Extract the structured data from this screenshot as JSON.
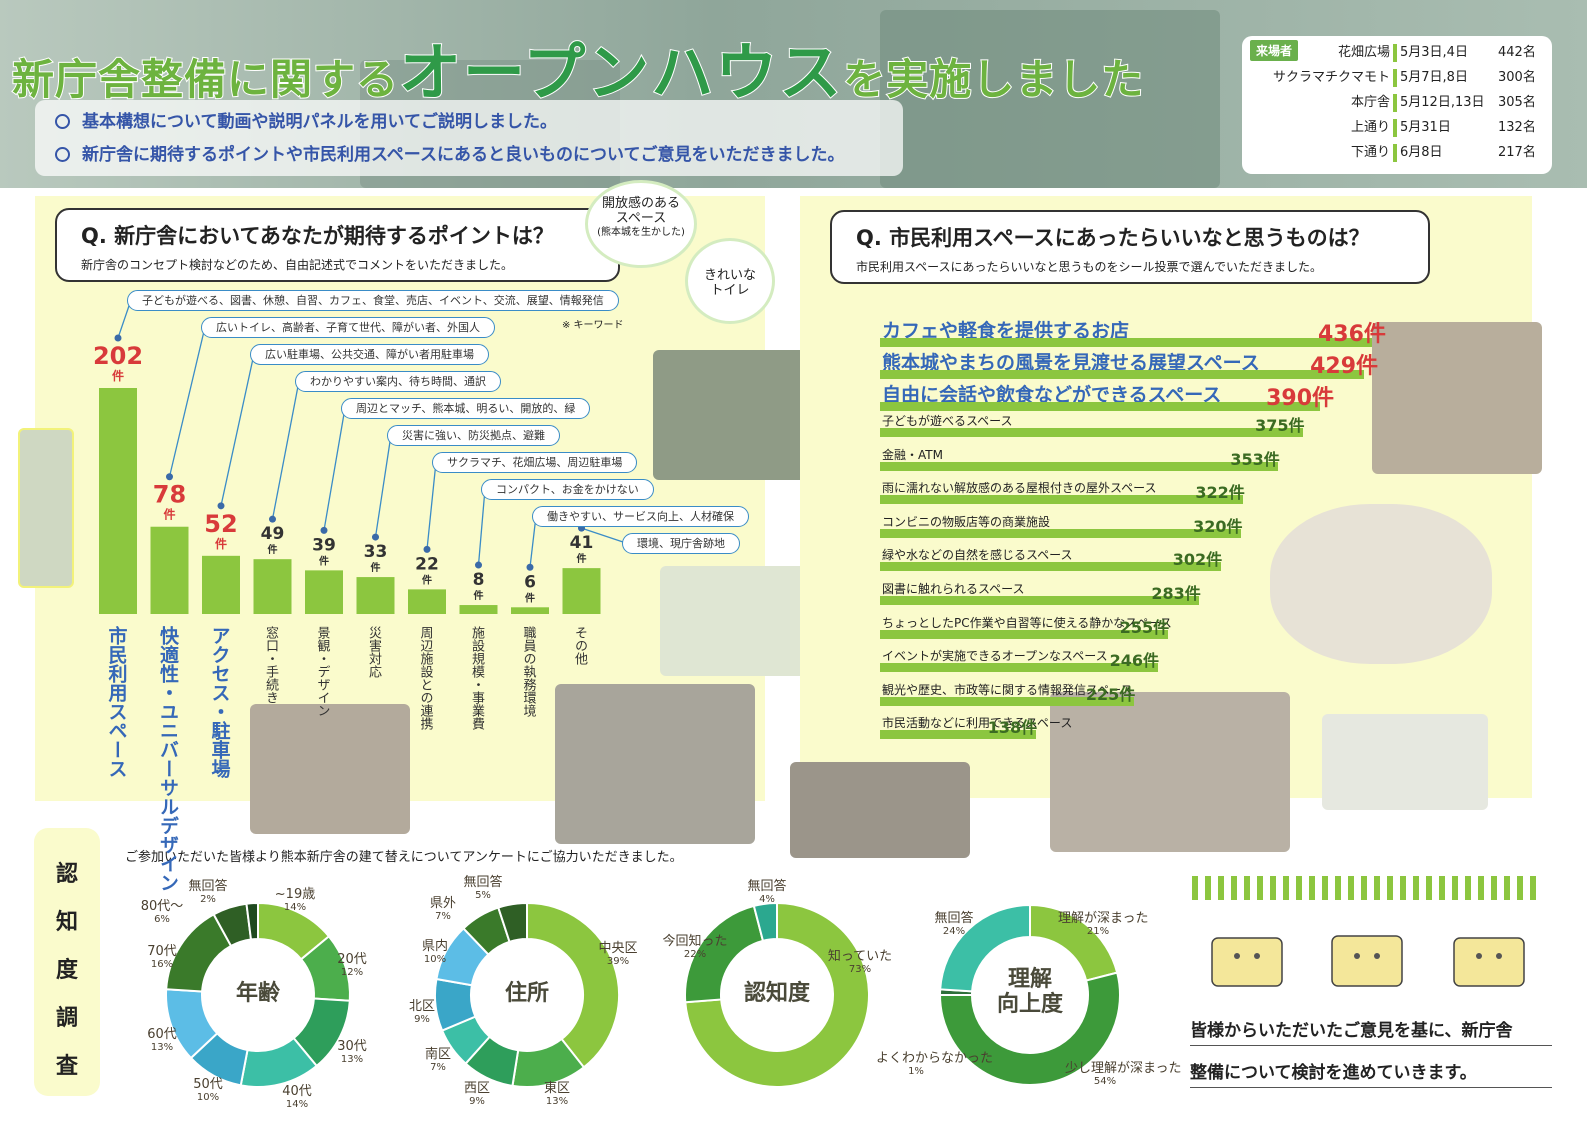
{
  "header": {
    "title_part1": "新庁舎整備に関する",
    "title_part2": "オープンハウス",
    "title_part3": "を実施しました",
    "bullets": [
      "基本構想について動画や説明パネルを用いてご説明しました。",
      "新庁舎に期待するポイントや市民利用スペースにあると良いものについてご意見をいただきました。"
    ],
    "visitors_label": "来場者",
    "visitors": [
      {
        "location": "花畑広場",
        "date": "5月3日,4日",
        "count": "442名"
      },
      {
        "location": "サクラマチクマモト",
        "date": "5月7日,8日",
        "count": "300名"
      },
      {
        "location": "本庁舎",
        "date": "5月12日,13日",
        "count": "305名"
      },
      {
        "location": "上通り",
        "date": "5月31日",
        "count": "132名"
      },
      {
        "location": "下通り",
        "date": "6月8日",
        "count": "217名"
      }
    ]
  },
  "left_panel": {
    "question": "Q.  新庁舎においてあなたが期待するポイントは？",
    "subtitle": "新庁舎のコンセプト検討などのため、自由記述式でコメントをいただきました。",
    "keyword_note": "※ キーワード",
    "bubble_open": "開放感のある\nスペース",
    "bubble_open_sub": "(熊本城を生かした)",
    "bubble_toilet": "きれいな\nトイレ"
  },
  "right_panel": {
    "question": "Q.  市民利用スペースにあったらいいなと思うものは？",
    "subtitle": "市民利用スペースにあったらいいなと思うものをシール投票で選んでいただきました。"
  },
  "awareness": {
    "side_title": [
      "認",
      "知",
      "度",
      "調",
      "査"
    ],
    "note": "ご参加いただいた皆様より熊本新庁舎の建て替えについてアンケートにご協力いただきました。"
  },
  "closing": {
    "line1": "皆様からいただいたご意見を基に、新庁舎",
    "line2": "整備について検討を進めていきます。"
  },
  "chart_data": [
    {
      "type": "bar",
      "unit": "件",
      "categories": [
        "市民利用スペース",
        "快適性・ユニバーサルデザイン",
        "アクセス・駐車場",
        "窓口・手続き",
        "景観・デザイン",
        "災害対応",
        "周辺施設との連携",
        "施設規模・事業費",
        "職員の執務環境",
        "その他"
      ],
      "values": [
        202,
        78,
        52,
        49,
        39,
        33,
        22,
        8,
        6,
        41
      ],
      "keywords": [
        "子どもが遊べる、図書、休憩、自習、カフェ、食堂、売店、イベント、交流、展望、情報発信",
        "広いトイレ、高齢者、子育て世代、障がい者、外国人",
        "広い駐車場、公共交通、障がい者用駐車場",
        "わかりやすい案内、待ち時間、通訳",
        "周辺とマッチ、熊本城、明るい、開放的、緑",
        "災害に強い、防災拠点、避難",
        "サクラマチ、花畑広場、周辺駐車場",
        "コンパクト、お金をかけない",
        "働きやすい、サービス向上、人材確保",
        "環境、現庁舎跡地"
      ]
    },
    {
      "type": "bar",
      "orientation": "horizontal",
      "unit": "件",
      "categories": [
        "カフェや軽食を提供するお店",
        "熊本城やまちの風景を見渡せる展望スペース",
        "自由に会話や飲食などができるスペース",
        "子どもが遊べるスペース",
        "金融・ATM",
        "雨に濡れない解放感のある屋根付きの屋外スペース",
        "コンビニの物販店等の商業施設",
        "緑や水などの自然を感じるスペース",
        "図書に触れられるスペース",
        "ちょっとしたPC作業や自習等に使える静かなスペース",
        "イベントが実施できるオープンなスペース",
        "観光や歴史、市政等に関する情報発信スペース",
        "市民活動などに利用できるスペース"
      ],
      "values": [
        436,
        429,
        390,
        375,
        353,
        322,
        320,
        302,
        283,
        255,
        246,
        225,
        138
      ]
    },
    {
      "type": "pie",
      "title": "年齢",
      "categories": [
        "~19歳",
        "20代",
        "30代",
        "40代",
        "50代",
        "60代",
        "70代",
        "80代～",
        "無回答"
      ],
      "values": [
        14,
        12,
        13,
        14,
        10,
        13,
        16,
        6,
        2
      ],
      "colors": [
        "#8cc63f",
        "#4cae4c",
        "#2e9e5b",
        "#3cbfa6",
        "#3aa6c8",
        "#5cbde6",
        "#3a7a2a",
        "#2f5f25",
        "#1f4a1f"
      ]
    },
    {
      "type": "pie",
      "title": "住所",
      "categories": [
        "中央区",
        "東区",
        "西区",
        "南区",
        "北区",
        "県内",
        "県外",
        "無回答"
      ],
      "values": [
        39,
        13,
        9,
        7,
        9,
        10,
        7,
        5
      ],
      "colors": [
        "#8cc63f",
        "#4cae4c",
        "#2e9e5b",
        "#3cbfa6",
        "#3aa6c8",
        "#5cbde6",
        "#3a7a2a",
        "#2f5f25"
      ]
    },
    {
      "type": "pie",
      "title": "認知度",
      "categories": [
        "知っていた",
        "今回知った",
        "無回答"
      ],
      "values": [
        73,
        22,
        4
      ],
      "colors": [
        "#8cc63f",
        "#3d9a3a",
        "#2ba88f"
      ]
    },
    {
      "type": "pie",
      "title": "理解向上度",
      "categories": [
        "理解が深まった",
        "少し理解が深まった",
        "よくわからなかった",
        "無回答"
      ],
      "values": [
        21,
        54,
        1,
        24
      ],
      "colors": [
        "#8cc63f",
        "#3d9a3a",
        "#2e6f3a",
        "#3cbfa6"
      ]
    }
  ]
}
